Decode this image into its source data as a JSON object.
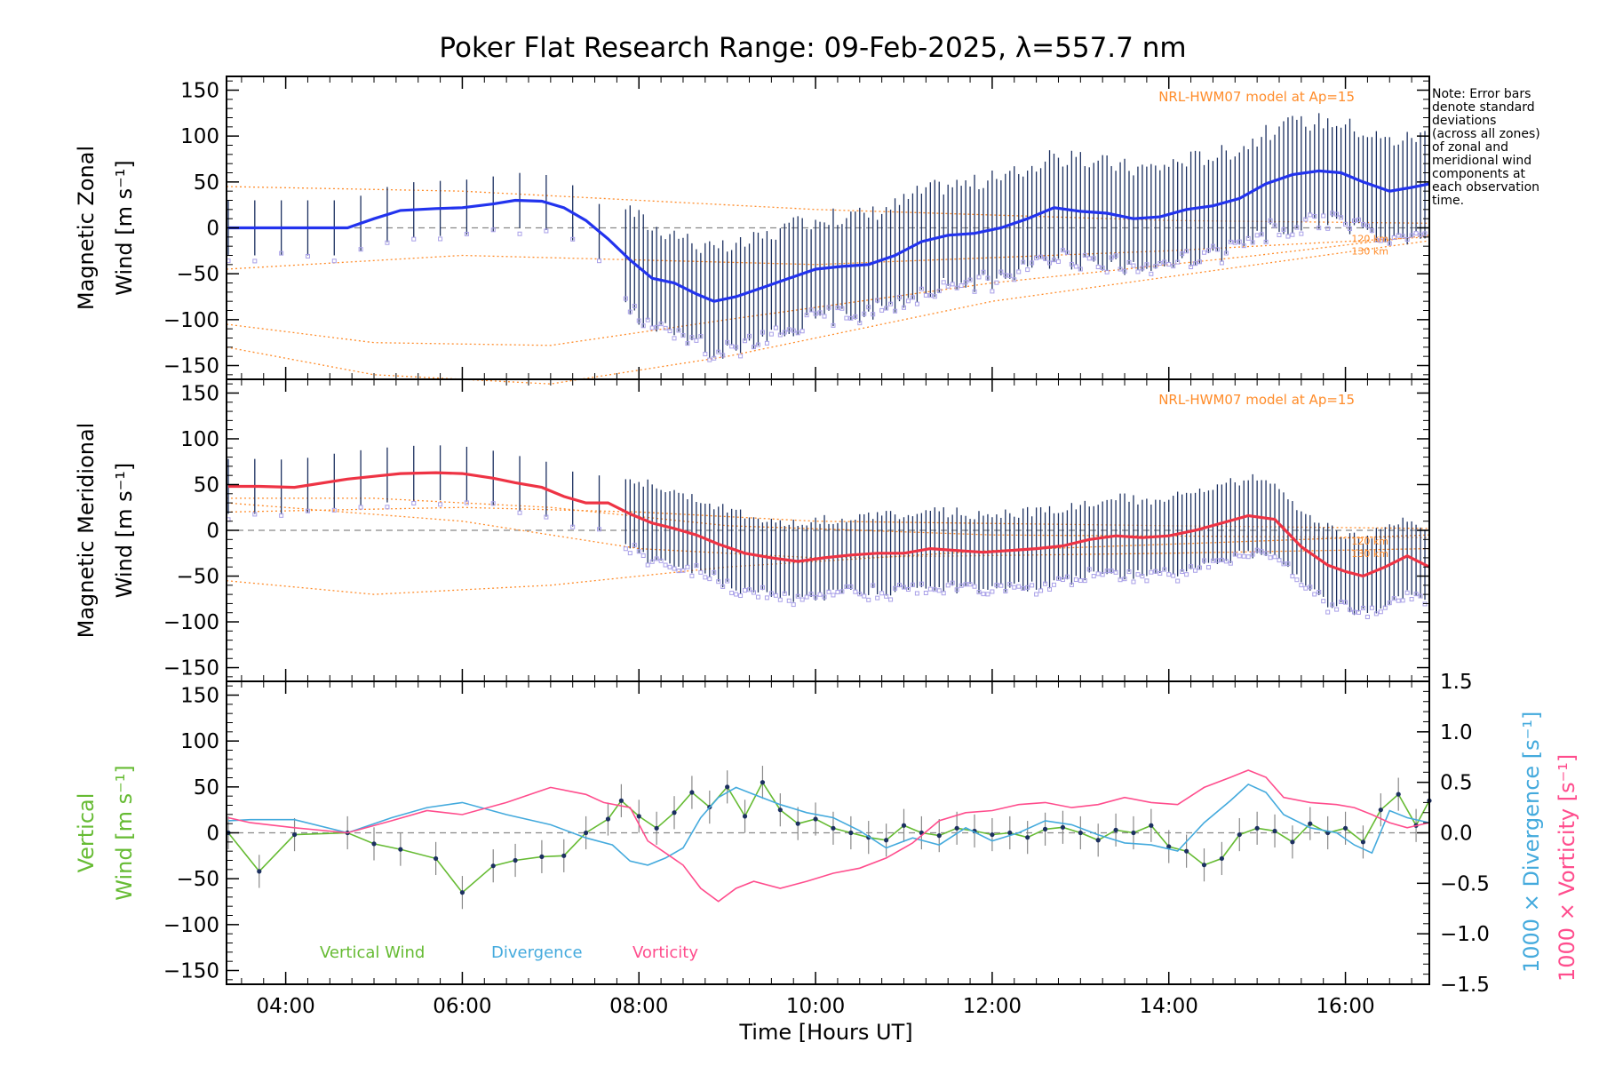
{
  "title": "Poker Flat Research Range: 09-Feb-2025, λ=557.7 nm",
  "note_lines": [
    "Note: Error bars",
    "denote standard",
    "deviations",
    "(across all zones)",
    "of zonal and",
    "meridional wind",
    "components at",
    "each observation",
    "time."
  ],
  "xlabel": "Time [Hours UT]",
  "colors": {
    "zonal_mean": "#2233ee",
    "zonal_mean_late": "#3b9de0",
    "meridional_mean": "#ee3344",
    "meridional_mean_late": "#ff4a7a",
    "model": "#ff8c2a",
    "vertical": "#66bb33",
    "divergence": "#44aadd",
    "vorticity": "#ff4d8d",
    "errorbar": "#1c3060",
    "zone_points": "#a9a0e8"
  },
  "chart_data": [
    {
      "type": "line",
      "panel": "zonal",
      "ylabel_lines": [
        "Magnetic Zonal",
        "Wind [m s⁻¹]"
      ],
      "ylim": [
        -165,
        165
      ],
      "xlim": [
        3.33,
        16.95
      ],
      "yticks": [
        "150",
        "100",
        "50",
        "0",
        "−50",
        "−100",
        "−150"
      ],
      "xticks": [
        "04:00",
        "06:00",
        "08:00",
        "10:00",
        "12:00",
        "14:00",
        "16:00"
      ],
      "model_label": "NRL-HWM07 model at Ap=15",
      "model_altitudes": [
        "120 km",
        "130 km"
      ],
      "series": [
        {
          "x": [
            3.35,
            3.7,
            4.1,
            4.7,
            5.0,
            5.3,
            5.7,
            6.0,
            6.35,
            6.6,
            6.9,
            7.15,
            7.4,
            7.65,
            7.9,
            8.15,
            8.4,
            8.65,
            8.85,
            9.1,
            9.4,
            9.7,
            10.0,
            10.3,
            10.6,
            10.9,
            11.2,
            11.5,
            11.8,
            12.1,
            12.4,
            12.7,
            13.0,
            13.3,
            13.6,
            13.9,
            14.2,
            14.5,
            14.8,
            15.1,
            15.4,
            15.7,
            15.95,
            16.2,
            16.5,
            16.75,
            16.95
          ],
          "y": [
            0,
            0,
            0,
            0,
            10,
            19,
            21,
            22,
            26,
            30,
            29,
            22,
            8,
            -12,
            -35,
            -55,
            -60,
            -72,
            -80,
            -75,
            -65,
            -55,
            -45,
            -42,
            -40,
            -30,
            -15,
            -8,
            -6,
            0,
            10,
            22,
            18,
            16,
            10,
            12,
            20,
            24,
            32,
            48,
            58,
            62,
            60,
            50,
            40,
            44,
            48
          ]
        }
      ]
    },
    {
      "type": "line",
      "panel": "meridional",
      "ylabel_lines": [
        "Magnetic Meridional",
        "Wind [m s⁻¹]"
      ],
      "ylim": [
        -165,
        165
      ],
      "xlim": [
        3.33,
        16.95
      ],
      "yticks": [
        "150",
        "100",
        "50",
        "0",
        "−50",
        "−100",
        "−150"
      ],
      "xticks": [
        "04:00",
        "06:00",
        "08:00",
        "10:00",
        "12:00",
        "14:00",
        "16:00"
      ],
      "model_label": "NRL-HWM07 model at Ap=15",
      "model_altitudes": [
        "120 km",
        "130 km"
      ],
      "series": [
        {
          "x": [
            3.35,
            3.7,
            4.1,
            4.7,
            5.0,
            5.3,
            5.7,
            6.0,
            6.35,
            6.6,
            6.9,
            7.15,
            7.4,
            7.65,
            7.9,
            8.15,
            8.4,
            8.65,
            8.9,
            9.2,
            9.5,
            9.8,
            10.1,
            10.4,
            10.7,
            11.0,
            11.3,
            11.6,
            11.9,
            12.2,
            12.5,
            12.8,
            13.1,
            13.4,
            13.7,
            14.0,
            14.3,
            14.6,
            14.9,
            15.2,
            15.5,
            15.8,
            16.0,
            16.2,
            16.45,
            16.7,
            16.95
          ],
          "y": [
            48,
            48,
            47,
            56,
            59,
            62,
            63,
            62,
            57,
            52,
            47,
            37,
            30,
            30,
            18,
            8,
            2,
            -5,
            -15,
            -25,
            -30,
            -34,
            -30,
            -27,
            -25,
            -25,
            -20,
            -22,
            -24,
            -22,
            -20,
            -17,
            -10,
            -6,
            -8,
            -6,
            0,
            8,
            16,
            12,
            -18,
            -38,
            -45,
            -50,
            -40,
            -28,
            -40
          ]
        }
      ]
    },
    {
      "type": "line",
      "panel": "vertical",
      "ylabel_lines": [
        "Vertical",
        "Wind [m s⁻¹]"
      ],
      "ylim": [
        -165,
        165
      ],
      "y2label_lines": [
        "1000 × Divergence [s⁻¹]",
        "1000 × Vorticity [s⁻¹]"
      ],
      "y2lim": [
        -1.5,
        1.5
      ],
      "xlim": [
        3.33,
        16.95
      ],
      "yticks": [
        "150",
        "100",
        "50",
        "0",
        "−50",
        "−100",
        "−150"
      ],
      "y2ticks": [
        "1.5",
        "1.0",
        "0.5",
        "0.0",
        "−0.5",
        "−1.0",
        "−1.5"
      ],
      "xticks": [
        "04:00",
        "06:00",
        "08:00",
        "10:00",
        "12:00",
        "14:00",
        "16:00"
      ],
      "legend": [
        "Vertical Wind",
        "Divergence",
        "Vorticity"
      ],
      "series": [
        {
          "name": "Vertical Wind",
          "axis": "left",
          "x": [
            3.35,
            3.7,
            4.1,
            4.7,
            5.0,
            5.3,
            5.7,
            6.0,
            6.35,
            6.6,
            6.9,
            7.15,
            7.4,
            7.65,
            7.8,
            8.0,
            8.2,
            8.4,
            8.6,
            8.8,
            9.0,
            9.2,
            9.4,
            9.6,
            9.8,
            10.0,
            10.2,
            10.4,
            10.6,
            10.8,
            11.0,
            11.2,
            11.4,
            11.6,
            11.8,
            12.0,
            12.2,
            12.4,
            12.6,
            12.8,
            13.0,
            13.2,
            13.4,
            13.6,
            13.8,
            14.0,
            14.2,
            14.4,
            14.6,
            14.8,
            15.0,
            15.2,
            15.4,
            15.6,
            15.8,
            16.0,
            16.2,
            16.4,
            16.6,
            16.8,
            16.95
          ],
          "y": [
            0,
            -42,
            -2,
            0,
            -12,
            -18,
            -28,
            -65,
            -36,
            -30,
            -26,
            -25,
            0,
            15,
            35,
            18,
            5,
            22,
            44,
            28,
            50,
            18,
            55,
            25,
            10,
            15,
            5,
            0,
            -5,
            -8,
            8,
            0,
            -3,
            5,
            2,
            -2,
            0,
            -5,
            4,
            6,
            0,
            -8,
            3,
            0,
            8,
            -15,
            -20,
            -35,
            -28,
            -2,
            5,
            2,
            -10,
            10,
            0,
            5,
            -10,
            25,
            42,
            8,
            35
          ]
        },
        {
          "name": "Divergence",
          "axis": "right",
          "x": [
            3.35,
            3.6,
            4.1,
            4.7,
            5.2,
            5.6,
            6.0,
            6.5,
            7.0,
            7.4,
            7.7,
            7.9,
            8.1,
            8.3,
            8.5,
            8.7,
            8.9,
            9.1,
            9.3,
            9.6,
            9.9,
            10.2,
            10.5,
            10.8,
            11.1,
            11.4,
            11.7,
            12.0,
            12.3,
            12.6,
            12.9,
            13.2,
            13.5,
            13.8,
            14.1,
            14.4,
            14.7,
            14.9,
            15.1,
            15.3,
            15.6,
            15.9,
            16.1,
            16.3,
            16.5,
            16.7,
            16.95
          ],
          "y": [
            0.12,
            0.13,
            0.13,
            0.0,
            0.15,
            0.25,
            0.3,
            0.18,
            0.08,
            -0.05,
            -0.12,
            -0.28,
            -0.32,
            -0.25,
            -0.15,
            0.15,
            0.35,
            0.45,
            0.38,
            0.28,
            0.2,
            0.15,
            0.02,
            -0.15,
            -0.05,
            -0.12,
            0.05,
            -0.08,
            0.0,
            0.12,
            0.08,
            -0.02,
            -0.1,
            -0.12,
            -0.18,
            0.1,
            0.32,
            0.48,
            0.4,
            0.18,
            0.05,
            0.0,
            -0.12,
            -0.2,
            0.22,
            0.15,
            0.1
          ]
        },
        {
          "name": "Vorticity",
          "axis": "right",
          "x": [
            3.35,
            3.6,
            4.1,
            4.7,
            5.2,
            5.6,
            6.0,
            6.5,
            7.0,
            7.4,
            7.6,
            7.9,
            8.1,
            8.3,
            8.5,
            8.7,
            8.9,
            9.1,
            9.3,
            9.6,
            9.9,
            10.2,
            10.5,
            10.8,
            11.1,
            11.4,
            11.7,
            12.0,
            12.3,
            12.6,
            12.9,
            13.2,
            13.5,
            13.8,
            14.1,
            14.4,
            14.7,
            14.9,
            15.1,
            15.3,
            15.6,
            15.9,
            16.1,
            16.3,
            16.5,
            16.7,
            16.95
          ],
          "y": [
            0.15,
            0.1,
            0.05,
            0.0,
            0.12,
            0.22,
            0.18,
            0.3,
            0.45,
            0.38,
            0.3,
            0.25,
            -0.08,
            -0.2,
            -0.32,
            -0.55,
            -0.68,
            -0.55,
            -0.48,
            -0.55,
            -0.48,
            -0.4,
            -0.35,
            -0.25,
            -0.1,
            0.12,
            0.2,
            0.22,
            0.28,
            0.3,
            0.25,
            0.28,
            0.35,
            0.3,
            0.28,
            0.45,
            0.55,
            0.62,
            0.55,
            0.35,
            0.3,
            0.28,
            0.25,
            0.18,
            0.1,
            0.05,
            0.1
          ]
        }
      ]
    }
  ]
}
